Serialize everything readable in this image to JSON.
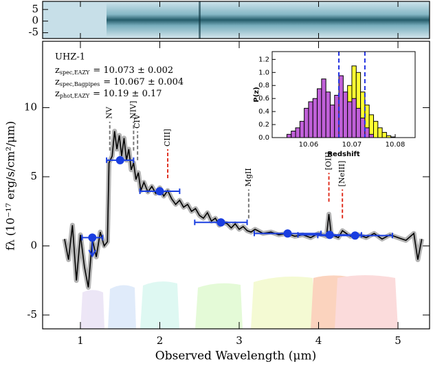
{
  "chart_data": [
    {
      "type": "heatmap",
      "ylim": [
        -7.5,
        8.5
      ],
      "yticks": [
        5,
        0,
        -5
      ]
    },
    {
      "type": "line",
      "xlabel": "Observed Wavelength (μm)",
      "ylabel": "fλ (10⁻¹⁷ erg/s/cm²/μm)",
      "xlim": [
        0.524,
        5.398
      ],
      "ylim": [
        -6,
        14.8
      ],
      "xticks": [
        1,
        2,
        3,
        4,
        5
      ],
      "yticks": [
        -5,
        0,
        5,
        10
      ],
      "spectrum": {
        "color": "#000000",
        "band_color": "#b4b4b4",
        "x": [
          0.8,
          0.85,
          0.9,
          0.95,
          1.0,
          1.05,
          1.1,
          1.15,
          1.2,
          1.25,
          1.3,
          1.34,
          1.36,
          1.4,
          1.43,
          1.46,
          1.49,
          1.52,
          1.55,
          1.58,
          1.61,
          1.64,
          1.67,
          1.7,
          1.73,
          1.76,
          1.8,
          1.85,
          1.9,
          1.95,
          2.0,
          2.05,
          2.1,
          2.15,
          2.2,
          2.25,
          2.3,
          2.35,
          2.4,
          2.45,
          2.5,
          2.55,
          2.6,
          2.65,
          2.7,
          2.75,
          2.8,
          2.85,
          2.9,
          2.95,
          3.0,
          3.05,
          3.1,
          3.15,
          3.2,
          3.3,
          3.4,
          3.5,
          3.6,
          3.7,
          3.8,
          3.9,
          4.0,
          4.1,
          4.13,
          4.16,
          4.25,
          4.3,
          4.4,
          4.5,
          4.6,
          4.7,
          4.8,
          4.9,
          5.0,
          5.1,
          5.2,
          5.25,
          5.3
        ],
        "values": [
          0.5,
          -1.0,
          1.5,
          -2.5,
          0.8,
          -1.5,
          -3.0,
          0.5,
          -0.8,
          1.0,
          0.0,
          0.3,
          6.0,
          6.5,
          8.3,
          7.0,
          8.0,
          6.5,
          7.8,
          6.2,
          7.0,
          5.5,
          6.0,
          4.8,
          5.3,
          4.0,
          4.6,
          3.9,
          4.3,
          3.8,
          4.2,
          3.6,
          4.0,
          3.4,
          3.0,
          3.3,
          2.8,
          3.0,
          2.5,
          2.7,
          2.2,
          2.0,
          2.4,
          1.8,
          2.0,
          1.5,
          1.7,
          1.6,
          1.3,
          1.6,
          1.2,
          1.4,
          1.1,
          1.0,
          1.2,
          0.9,
          1.0,
          0.8,
          0.9,
          0.7,
          0.8,
          0.6,
          0.9,
          0.7,
          2.3,
          0.8,
          0.6,
          1.1,
          0.7,
          0.8,
          0.6,
          0.9,
          0.5,
          0.8,
          0.6,
          0.4,
          0.9,
          -1.0,
          0.5
        ]
      },
      "photometry": {
        "color": "#1a3ee0",
        "x": [
          1.15,
          1.5,
          2.0,
          2.77,
          3.61,
          4.14,
          4.46
        ],
        "values": [
          0.6,
          6.2,
          3.95,
          1.7,
          0.9,
          0.8,
          0.75
        ],
        "xerr": [
          0.13,
          0.17,
          0.25,
          0.33,
          0.42,
          0.4,
          0.47
        ],
        "upper_limits": [
          true,
          false,
          false,
          false,
          false,
          false,
          false
        ]
      },
      "lines": [
        {
          "label": "NV",
          "x": 1.37,
          "color": "#777777"
        },
        {
          "label": "NIV]",
          "x": 1.67,
          "color": "#777777"
        },
        {
          "label": "CIV",
          "x": 1.72,
          "color": "#777777"
        },
        {
          "label": "CIII]",
          "x": 2.1,
          "color": "#e03020"
        },
        {
          "label": "MgII",
          "x": 3.12,
          "color": "#777777"
        },
        {
          "label": "[OII]",
          "x": 4.13,
          "color": "#e03020"
        },
        {
          "label": "[NeIII]",
          "x": 4.3,
          "color": "#e03020"
        }
      ],
      "annotations": {
        "name": "UHZ-1",
        "redshifts": [
          {
            "symbol": "z",
            "sub": "spec,EAZY",
            "text": "= 10.073 ± 0.002"
          },
          {
            "symbol": "z",
            "sub": "spec,Bagpipes",
            "text": "= 10.067 ± 0.004"
          },
          {
            "symbol": "z",
            "sub": "phot,EAZY",
            "text": "= 10.19 ± 0.17"
          }
        ]
      }
    },
    {
      "type": "histogram",
      "xlabel": "Redshift",
      "ylabel": "P(z)",
      "xlim": [
        10.0516,
        10.0846
      ],
      "ylim": [
        0,
        1.32
      ],
      "xticks": [
        10.06,
        10.07,
        10.08
      ],
      "yticks": [
        {
          "value": 0,
          "label": "0.0"
        },
        0.2,
        0.4,
        0.6,
        0.8,
        {
          "value": 1,
          "label": "1.0"
        },
        1.2
      ],
      "bins": [
        10.055,
        10.056,
        10.057,
        10.058,
        10.059,
        10.06,
        10.061,
        10.062,
        10.063,
        10.064,
        10.065,
        10.066,
        10.067,
        10.068,
        10.069,
        10.07,
        10.071,
        10.072,
        10.073,
        10.074,
        10.075,
        10.076,
        10.077,
        10.078,
        10.079,
        10.08
      ],
      "series": [
        {
          "color": "#ffff33",
          "values": [
            0,
            0,
            0,
            0,
            0,
            0,
            0,
            0,
            0,
            0.02,
            0.1,
            0.2,
            0.35,
            0.55,
            0.8,
            1.1,
            1.0,
            0.7,
            0.5,
            0.35,
            0.25,
            0.15,
            0.08,
            0.03,
            0.01
          ]
        },
        {
          "color": "#c060d8",
          "values": [
            0.05,
            0.1,
            0.15,
            0.25,
            0.45,
            0.55,
            0.6,
            0.75,
            0.9,
            0.7,
            0.5,
            0.65,
            0.95,
            0.7,
            0.55,
            0.6,
            0.45,
            0.3,
            0.15,
            0.05,
            0,
            0,
            0,
            0,
            0
          ]
        }
      ],
      "vlines": {
        "color": "#2030e0",
        "values": [
          10.067,
          10.073
        ]
      }
    }
  ]
}
